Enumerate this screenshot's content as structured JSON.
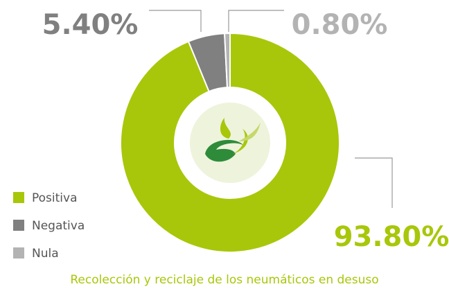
{
  "chart_data": {
    "type": "donut",
    "title": "Recolección y reciclaje de los neumáticos en desuso",
    "categories": [
      "Positiva",
      "Negativa",
      "Nula"
    ],
    "values": [
      93.8,
      5.4,
      0.8
    ],
    "value_labels": [
      "93.80%",
      "5.40%",
      "0.80%"
    ],
    "colors": [
      "#a8c70a",
      "#808080",
      "#b3b3b3"
    ],
    "legend": "bottom-left"
  }
}
